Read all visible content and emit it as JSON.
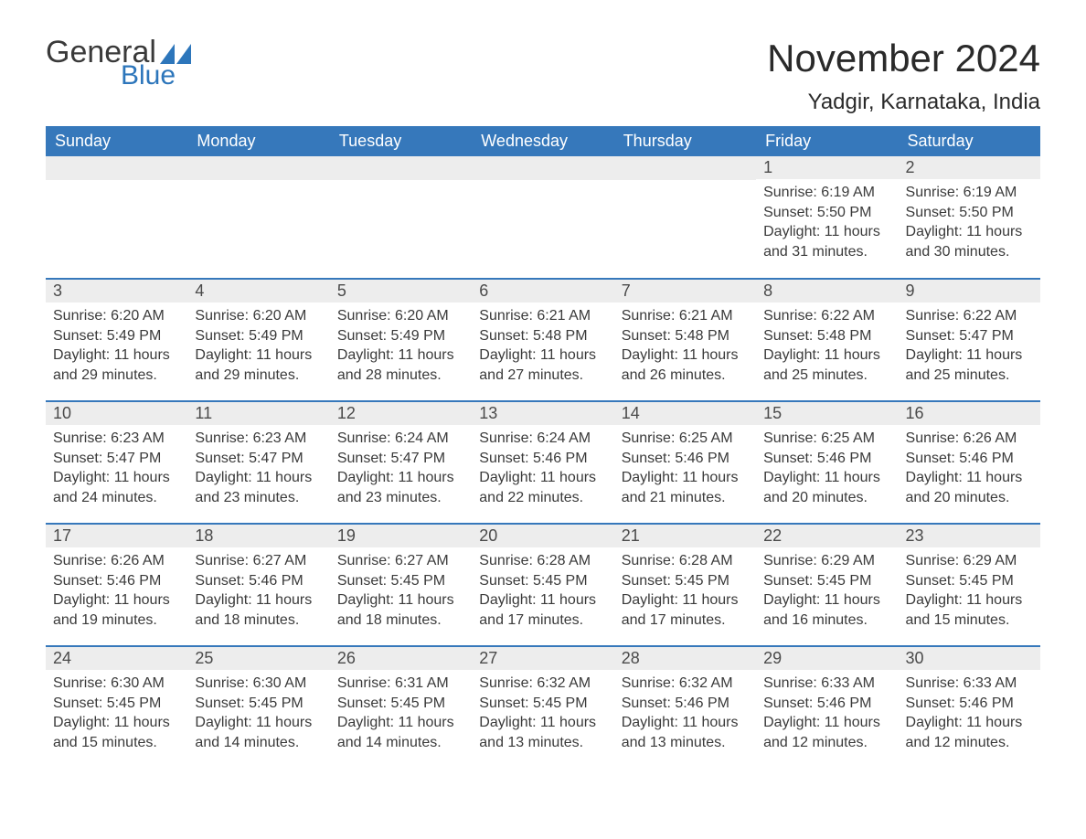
{
  "brand": {
    "word1": "General",
    "word2": "Blue"
  },
  "title": "November 2024",
  "location": "Yadgir, Karnataka, India",
  "colors": {
    "header_bg": "#3678bb",
    "header_text": "#ffffff",
    "daynum_bg": "#ededed",
    "rule": "#3678bb",
    "text": "#3a3a3a",
    "brand_blue": "#2d76bb"
  },
  "layout": {
    "columns": 7,
    "rows": 5,
    "leading_blanks": 5
  },
  "weekdays": [
    "Sunday",
    "Monday",
    "Tuesday",
    "Wednesday",
    "Thursday",
    "Friday",
    "Saturday"
  ],
  "days": [
    {
      "n": 1,
      "sunrise": "6:19 AM",
      "sunset": "5:50 PM",
      "daylight": "11 hours and 31 minutes."
    },
    {
      "n": 2,
      "sunrise": "6:19 AM",
      "sunset": "5:50 PM",
      "daylight": "11 hours and 30 minutes."
    },
    {
      "n": 3,
      "sunrise": "6:20 AM",
      "sunset": "5:49 PM",
      "daylight": "11 hours and 29 minutes."
    },
    {
      "n": 4,
      "sunrise": "6:20 AM",
      "sunset": "5:49 PM",
      "daylight": "11 hours and 29 minutes."
    },
    {
      "n": 5,
      "sunrise": "6:20 AM",
      "sunset": "5:49 PM",
      "daylight": "11 hours and 28 minutes."
    },
    {
      "n": 6,
      "sunrise": "6:21 AM",
      "sunset": "5:48 PM",
      "daylight": "11 hours and 27 minutes."
    },
    {
      "n": 7,
      "sunrise": "6:21 AM",
      "sunset": "5:48 PM",
      "daylight": "11 hours and 26 minutes."
    },
    {
      "n": 8,
      "sunrise": "6:22 AM",
      "sunset": "5:48 PM",
      "daylight": "11 hours and 25 minutes."
    },
    {
      "n": 9,
      "sunrise": "6:22 AM",
      "sunset": "5:47 PM",
      "daylight": "11 hours and 25 minutes."
    },
    {
      "n": 10,
      "sunrise": "6:23 AM",
      "sunset": "5:47 PM",
      "daylight": "11 hours and 24 minutes."
    },
    {
      "n": 11,
      "sunrise": "6:23 AM",
      "sunset": "5:47 PM",
      "daylight": "11 hours and 23 minutes."
    },
    {
      "n": 12,
      "sunrise": "6:24 AM",
      "sunset": "5:47 PM",
      "daylight": "11 hours and 23 minutes."
    },
    {
      "n": 13,
      "sunrise": "6:24 AM",
      "sunset": "5:46 PM",
      "daylight": "11 hours and 22 minutes."
    },
    {
      "n": 14,
      "sunrise": "6:25 AM",
      "sunset": "5:46 PM",
      "daylight": "11 hours and 21 minutes."
    },
    {
      "n": 15,
      "sunrise": "6:25 AM",
      "sunset": "5:46 PM",
      "daylight": "11 hours and 20 minutes."
    },
    {
      "n": 16,
      "sunrise": "6:26 AM",
      "sunset": "5:46 PM",
      "daylight": "11 hours and 20 minutes."
    },
    {
      "n": 17,
      "sunrise": "6:26 AM",
      "sunset": "5:46 PM",
      "daylight": "11 hours and 19 minutes."
    },
    {
      "n": 18,
      "sunrise": "6:27 AM",
      "sunset": "5:46 PM",
      "daylight": "11 hours and 18 minutes."
    },
    {
      "n": 19,
      "sunrise": "6:27 AM",
      "sunset": "5:45 PM",
      "daylight": "11 hours and 18 minutes."
    },
    {
      "n": 20,
      "sunrise": "6:28 AM",
      "sunset": "5:45 PM",
      "daylight": "11 hours and 17 minutes."
    },
    {
      "n": 21,
      "sunrise": "6:28 AM",
      "sunset": "5:45 PM",
      "daylight": "11 hours and 17 minutes."
    },
    {
      "n": 22,
      "sunrise": "6:29 AM",
      "sunset": "5:45 PM",
      "daylight": "11 hours and 16 minutes."
    },
    {
      "n": 23,
      "sunrise": "6:29 AM",
      "sunset": "5:45 PM",
      "daylight": "11 hours and 15 minutes."
    },
    {
      "n": 24,
      "sunrise": "6:30 AM",
      "sunset": "5:45 PM",
      "daylight": "11 hours and 15 minutes."
    },
    {
      "n": 25,
      "sunrise": "6:30 AM",
      "sunset": "5:45 PM",
      "daylight": "11 hours and 14 minutes."
    },
    {
      "n": 26,
      "sunrise": "6:31 AM",
      "sunset": "5:45 PM",
      "daylight": "11 hours and 14 minutes."
    },
    {
      "n": 27,
      "sunrise": "6:32 AM",
      "sunset": "5:45 PM",
      "daylight": "11 hours and 13 minutes."
    },
    {
      "n": 28,
      "sunrise": "6:32 AM",
      "sunset": "5:46 PM",
      "daylight": "11 hours and 13 minutes."
    },
    {
      "n": 29,
      "sunrise": "6:33 AM",
      "sunset": "5:46 PM",
      "daylight": "11 hours and 12 minutes."
    },
    {
      "n": 30,
      "sunrise": "6:33 AM",
      "sunset": "5:46 PM",
      "daylight": "11 hours and 12 minutes."
    }
  ],
  "labels": {
    "sunrise": "Sunrise: ",
    "sunset": "Sunset: ",
    "daylight": "Daylight: "
  }
}
